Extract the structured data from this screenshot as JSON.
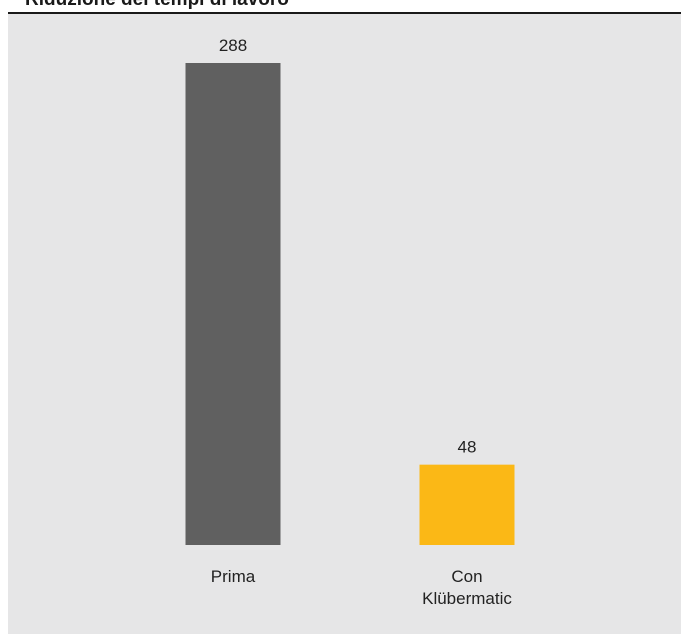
{
  "chart_data": {
    "type": "bar",
    "title": "Riduzione dei tempi di lavoro",
    "categories": [
      "Prima",
      "Con Klübermatic"
    ],
    "category_lines": [
      [
        "Prima"
      ],
      [
        "Con",
        "Klübermatic"
      ]
    ],
    "values": [
      288,
      48
    ],
    "data_labels": [
      "288",
      "48"
    ],
    "colors": [
      "#606060",
      "#fbb816"
    ],
    "ylim": [
      0,
      288
    ],
    "grid": false,
    "legend": "none",
    "xlabel": "",
    "ylabel": ""
  }
}
